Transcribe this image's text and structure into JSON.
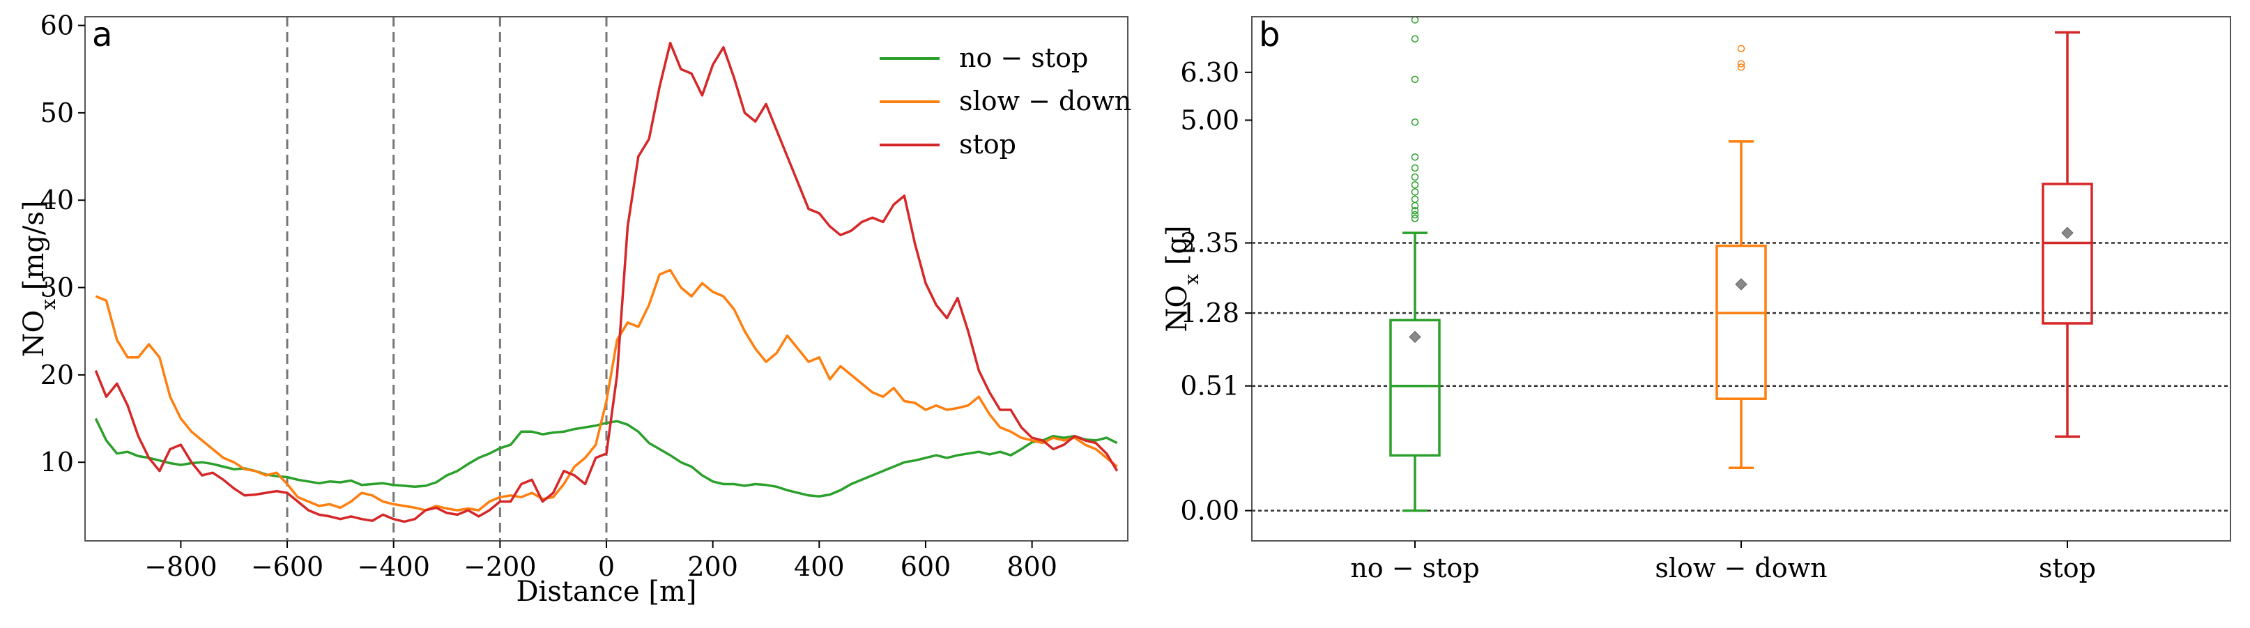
{
  "chart_data": [
    {
      "panel": "a",
      "type": "line",
      "title": "",
      "xlabel": "Distance [m]",
      "ylabel": "NO",
      "ylabel_sub": "x",
      "ylabel_unit": "[mg/s]",
      "xlim": [
        -980,
        980
      ],
      "ylim": [
        1,
        61
      ],
      "xticks": [
        -800,
        -600,
        -400,
        -200,
        0,
        200,
        400,
        600,
        800
      ],
      "xtick_labels": [
        "−800",
        "−600",
        "−400",
        "−200",
        "0",
        "200",
        "400",
        "600",
        "800"
      ],
      "yticks": [
        10,
        20,
        30,
        40,
        50,
        60
      ],
      "ytick_labels": [
        "10",
        "20",
        "30",
        "40",
        "50",
        "60"
      ],
      "vlines": [
        -600,
        -400,
        -200,
        0
      ],
      "legend_position": "top-right",
      "series": [
        {
          "name": "no − stop",
          "color": "#2ca02c",
          "x": [
            -960,
            -940,
            -920,
            -900,
            -880,
            -860,
            -840,
            -820,
            -800,
            -780,
            -760,
            -740,
            -720,
            -700,
            -680,
            -660,
            -640,
            -620,
            -600,
            -580,
            -560,
            -540,
            -520,
            -500,
            -480,
            -460,
            -440,
            -420,
            -400,
            -380,
            -360,
            -340,
            -320,
            -300,
            -280,
            -260,
            -240,
            -220,
            -200,
            -180,
            -160,
            -140,
            -120,
            -100,
            -80,
            -60,
            -40,
            -20,
            0,
            20,
            40,
            60,
            80,
            100,
            120,
            140,
            160,
            180,
            200,
            220,
            240,
            260,
            280,
            300,
            320,
            340,
            360,
            380,
            400,
            420,
            440,
            460,
            480,
            500,
            520,
            540,
            560,
            580,
            600,
            620,
            640,
            660,
            680,
            700,
            720,
            740,
            760,
            780,
            800,
            820,
            840,
            860,
            880,
            900,
            920,
            940,
            960
          ],
          "values": [
            15,
            12.5,
            11,
            11.2,
            10.7,
            10.5,
            10.2,
            9.9,
            9.7,
            9.9,
            10,
            9.8,
            9.5,
            9.2,
            9.3,
            9,
            8.6,
            8.4,
            8.3,
            8,
            7.8,
            7.6,
            7.8,
            7.7,
            7.9,
            7.4,
            7.5,
            7.6,
            7.4,
            7.3,
            7.2,
            7.3,
            7.7,
            8.5,
            9,
            9.8,
            10.5,
            11,
            11.6,
            12,
            13.5,
            13.5,
            13.2,
            13.4,
            13.5,
            13.8,
            14,
            14.2,
            14.5,
            14.7,
            14.3,
            13.5,
            12.2,
            11.5,
            10.8,
            10,
            9.5,
            8.5,
            7.8,
            7.5,
            7.5,
            7.3,
            7.5,
            7.4,
            7.2,
            6.8,
            6.5,
            6.2,
            6.1,
            6.3,
            6.8,
            7.5,
            8,
            8.5,
            9,
            9.5,
            10,
            10.2,
            10.5,
            10.8,
            10.5,
            10.8,
            11,
            11.2,
            10.9,
            11.2,
            10.8,
            11.5,
            12.3,
            12.5,
            13,
            12.8,
            13,
            12.6,
            12.5,
            12.8,
            12.2
          ]
        },
        {
          "name": "slow − down",
          "color": "#ff7f0e",
          "x": [
            -960,
            -940,
            -920,
            -900,
            -880,
            -860,
            -840,
            -820,
            -800,
            -780,
            -760,
            -740,
            -720,
            -700,
            -680,
            -660,
            -640,
            -620,
            -600,
            -580,
            -560,
            -540,
            -520,
            -500,
            -480,
            -460,
            -440,
            -420,
            -400,
            -380,
            -360,
            -340,
            -320,
            -300,
            -280,
            -260,
            -240,
            -220,
            -200,
            -180,
            -160,
            -140,
            -120,
            -100,
            -80,
            -60,
            -40,
            -20,
            0,
            20,
            40,
            60,
            80,
            100,
            120,
            140,
            160,
            180,
            200,
            220,
            240,
            260,
            280,
            300,
            320,
            340,
            360,
            380,
            400,
            420,
            440,
            460,
            480,
            500,
            520,
            540,
            560,
            580,
            600,
            620,
            640,
            660,
            680,
            700,
            720,
            740,
            760,
            780,
            800,
            820,
            840,
            860,
            880,
            900,
            920,
            940,
            960
          ],
          "values": [
            29,
            28.5,
            24,
            22,
            22,
            23.5,
            22,
            17.5,
            15,
            13.5,
            12.5,
            11.5,
            10.5,
            10,
            9.2,
            9,
            8.5,
            8.8,
            7.5,
            6,
            5.5,
            5,
            5.2,
            4.8,
            5.5,
            6.5,
            6.2,
            5.5,
            5.2,
            5,
            4.8,
            4.5,
            5,
            4.7,
            4.5,
            4.7,
            4.5,
            5.5,
            6,
            6.2,
            6,
            6.5,
            5.8,
            6,
            7.5,
            9.5,
            10.5,
            12,
            17,
            24,
            26,
            25.5,
            28,
            31.5,
            32,
            30,
            29,
            30.5,
            29.5,
            29,
            27.5,
            25,
            23,
            21.5,
            22.5,
            24.5,
            23,
            21.5,
            22,
            19.5,
            21,
            20,
            19,
            18,
            17.5,
            18.5,
            17,
            16.8,
            16,
            16.5,
            16,
            16.2,
            16.5,
            17.5,
            15.5,
            14,
            13.5,
            12.8,
            12.5,
            12.2,
            12.8,
            12.5,
            12.8,
            12,
            11.5,
            10.5,
            9.5
          ]
        },
        {
          "name": "stop",
          "color": "#d62728",
          "x": [
            -960,
            -940,
            -920,
            -900,
            -880,
            -860,
            -840,
            -820,
            -800,
            -780,
            -760,
            -740,
            -720,
            -700,
            -680,
            -660,
            -640,
            -620,
            -600,
            -580,
            -560,
            -540,
            -520,
            -500,
            -480,
            -460,
            -440,
            -420,
            -400,
            -380,
            -360,
            -340,
            -320,
            -300,
            -280,
            -260,
            -240,
            -220,
            -200,
            -180,
            -160,
            -140,
            -120,
            -100,
            -80,
            -60,
            -40,
            -20,
            0,
            20,
            40,
            60,
            80,
            100,
            120,
            140,
            160,
            180,
            200,
            220,
            240,
            260,
            280,
            300,
            320,
            340,
            360,
            380,
            400,
            420,
            440,
            460,
            480,
            500,
            520,
            540,
            560,
            580,
            600,
            620,
            640,
            660,
            680,
            700,
            720,
            740,
            760,
            780,
            800,
            820,
            840,
            860,
            880,
            900,
            920,
            940,
            960
          ],
          "values": [
            20.5,
            17.5,
            19,
            16.5,
            13,
            10.5,
            9,
            11.5,
            12,
            10,
            8.5,
            8.8,
            8,
            7,
            6.2,
            6.3,
            6.5,
            6.7,
            6.5,
            5.5,
            4.5,
            4,
            3.8,
            3.5,
            3.8,
            3.5,
            3.3,
            4,
            3.5,
            3.2,
            3.5,
            4.5,
            4.8,
            4.2,
            4,
            4.5,
            3.8,
            4.5,
            5.5,
            5.5,
            7.5,
            8,
            5.5,
            6.5,
            9,
            8.5,
            7.5,
            10.5,
            11,
            20,
            37,
            45,
            47,
            53,
            58,
            55,
            54.5,
            52,
            55.5,
            57.5,
            54,
            50,
            49,
            51,
            48,
            45,
            42,
            39,
            38.5,
            37,
            36,
            36.5,
            37.5,
            38,
            37.5,
            39.5,
            40.5,
            35,
            30.5,
            28,
            26.5,
            28.8,
            25,
            20.5,
            18,
            16,
            16,
            14,
            12.8,
            12.5,
            11.5,
            12,
            13,
            12.5,
            12.2,
            11,
            9
          ]
        }
      ]
    },
    {
      "panel": "b",
      "type": "box",
      "title": "",
      "xlabel": "",
      "ylabel": "NO",
      "ylabel_sub": "x",
      "ylabel_unit": "[g]",
      "y_scale": "sqrt",
      "ylim": [
        -0.03,
        8.0
      ],
      "yticks": [
        0.0,
        0.51,
        1.28,
        2.35,
        5.0,
        6.3
      ],
      "ytick_labels": [
        "0.00",
        "0.51",
        "1.28",
        "2.35",
        "5.00",
        "6.30"
      ],
      "hlines": [
        0.0,
        0.51,
        1.28,
        2.35
      ],
      "categories": [
        "no − stop",
        "slow − down",
        "stop"
      ],
      "boxes": [
        {
          "name": "no − stop",
          "color": "#2ca02c",
          "whislo": 0.0,
          "q1": 0.1,
          "median": 0.51,
          "q3": 1.19,
          "whishi": 2.53,
          "mean": 0.99,
          "fliers": [
            7.9,
            7.3,
            6.1,
            4.95,
            4.1,
            3.85,
            3.65,
            3.48,
            3.33,
            3.18,
            3.05,
            2.95,
            2.87,
            2.8
          ]
        },
        {
          "name": "slow − down",
          "color": "#ff7f0e",
          "whislo": 0.06,
          "q1": 0.41,
          "median": 1.28,
          "q3": 2.3,
          "whishi": 4.47,
          "mean": 1.68,
          "fliers": [
            7.0,
            6.55,
            6.45
          ]
        },
        {
          "name": "stop",
          "color": "#d62728",
          "whislo": 0.18,
          "q1": 1.15,
          "median": 2.35,
          "q3": 3.5,
          "whishi": 7.5,
          "mean": 2.53,
          "fliers": []
        }
      ]
    }
  ]
}
